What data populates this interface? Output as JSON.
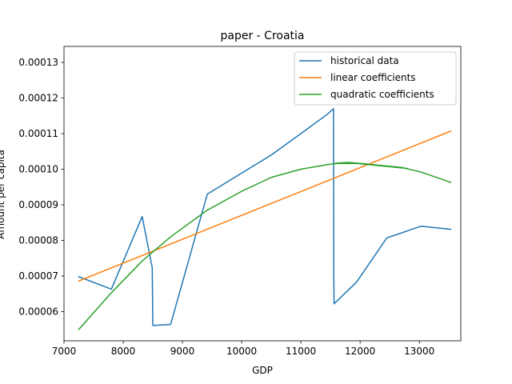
{
  "chart_data": {
    "type": "line",
    "title": "paper - Croatia",
    "xlabel": "GDP",
    "ylabel": "Amount per capita",
    "xlim": [
      7000,
      13700
    ],
    "ylim": [
      5.18e-05,
      0.0001345
    ],
    "x_ticks": [
      7000,
      8000,
      9000,
      10000,
      11000,
      12000,
      13000
    ],
    "x_tick_labels": [
      "7000",
      "8000",
      "9000",
      "10000",
      "11000",
      "12000",
      "13000"
    ],
    "y_ticks": [
      6e-05,
      7e-05,
      8e-05,
      9e-05,
      0.0001,
      0.00011,
      0.00012,
      0.00013
    ],
    "y_tick_labels": [
      "0.00006",
      "0.00007",
      "0.00008",
      "0.00009",
      "0.00010",
      "0.00011",
      "0.00012",
      "0.00013"
    ],
    "grid": false,
    "legend_position": "top-right",
    "series": [
      {
        "name": "historical data",
        "color": "#1f77b4",
        "x": [
          7250,
          7800,
          8320,
          8490,
          8500,
          8800,
          9420,
          10500,
          11000,
          11450,
          11550,
          11555,
          11560,
          11940,
          12450,
          13030,
          13530
        ],
        "y": [
          6.98e-05,
          6.63e-05,
          8.67e-05,
          7.23e-05,
          5.61e-05,
          5.64e-05,
          9.3e-05,
          0.000104,
          0.00011,
          0.0001155,
          0.000117,
          7.05e-05,
          6.22e-05,
          6.83e-05,
          8.07e-05,
          8.4e-05,
          8.31e-05
        ]
      },
      {
        "name": "linear coefficients",
        "color": "#ff7f0e",
        "x": [
          7250,
          13530
        ],
        "y": [
          6.86e-05,
          0.0001107
        ]
      },
      {
        "name": "quadratic coefficients",
        "color": "#2ca02c",
        "x": [
          7250,
          7800,
          8320,
          8800,
          9420,
          10000,
          10500,
          11000,
          11450,
          11700,
          11900,
          12200,
          12500,
          12800,
          12450,
          12000,
          11560,
          11600,
          11800,
          12100,
          12400,
          12700,
          13030,
          13530
        ],
        "y": [
          5.5e-05,
          6.53e-05,
          7.42e-05,
          8.1e-05,
          8.85e-05,
          9.38e-05,
          9.77e-05,
          0.0001,
          0.0001013,
          0.0001018,
          0.0001017,
          0.0001012,
          0.0001007,
          0.0001002,
          0.0001008,
          0.0001016,
          0.0001016,
          0.0001017,
          0.0001019,
          0.0001015,
          0.000101,
          0.0001005,
          9.92e-05,
          9.63e-05
        ]
      }
    ]
  }
}
